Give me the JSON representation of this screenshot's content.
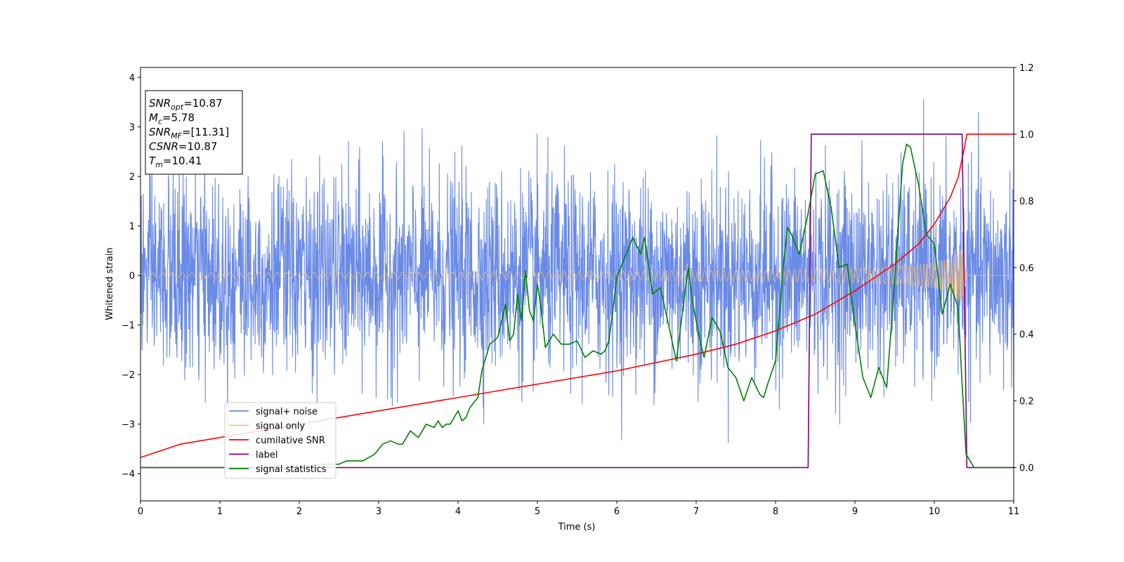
{
  "chart_data": {
    "type": "line",
    "title": "",
    "xlabel": "Time (s)",
    "ylabel": "Whitened strain",
    "y2label": "",
    "xlim": [
      0,
      11
    ],
    "ylim": [
      -4.55,
      4.2
    ],
    "y2lim": [
      -0.1,
      1.2
    ],
    "xticks": [
      0,
      1,
      2,
      3,
      4,
      5,
      6,
      7,
      8,
      9,
      10,
      11
    ],
    "yticks": [
      4,
      3,
      2,
      1,
      0,
      -1,
      -2,
      -3,
      -4
    ],
    "ytick_labels": [
      "4",
      "3",
      "2",
      "1",
      "0",
      "−1",
      "−2",
      "−3",
      "−4"
    ],
    "y2ticks": [
      1.2,
      1.0,
      0.8,
      0.6,
      0.4,
      0.2,
      0.0
    ],
    "y2tick_labels": [
      "1.2",
      "1.0",
      "0.8",
      "0.6",
      "0.4",
      "0.2",
      "0.0"
    ],
    "grid": false,
    "legend_position": "lower-left",
    "stats_box": [
      {
        "base": "SNR",
        "sub": "opt",
        "value": "=10.87"
      },
      {
        "base": "M",
        "sub": "c",
        "value": "=5.78"
      },
      {
        "base": "SNR",
        "sub": "MF",
        "value": "=[11.31]"
      },
      {
        "base": "CSNR",
        "sub": "",
        "value": "=10.87"
      },
      {
        "base": "T",
        "sub": "m",
        "value": "=10.41"
      }
    ],
    "series": [
      {
        "name": "signal+ noise",
        "color": "#6a8ae6",
        "axis": "left",
        "kind": "noise",
        "std": 1.0,
        "dt": 0.004
      },
      {
        "name": "signal only",
        "color": "#f7c27a",
        "axis": "left",
        "kind": "chirp",
        "t_merge": 10.41,
        "amplitude_envelope": {
          "x": [
            0,
            2,
            4,
            6,
            8,
            9,
            9.5,
            10,
            10.2,
            10.35,
            10.41
          ],
          "y": [
            0.05,
            0.06,
            0.07,
            0.09,
            0.12,
            0.15,
            0.18,
            0.25,
            0.35,
            0.55,
            0.0
          ]
        }
      },
      {
        "name": "cumilative SNR",
        "color": "#ff0000",
        "axis": "right",
        "x": [
          0,
          0.5,
          1,
          2,
          3,
          4,
          5,
          6,
          7,
          7.5,
          8,
          8.5,
          9,
          9.5,
          9.8,
          10,
          10.2,
          10.3,
          10.38,
          10.41,
          11
        ],
        "y": [
          0.03,
          0.07,
          0.09,
          0.13,
          0.17,
          0.21,
          0.25,
          0.29,
          0.34,
          0.37,
          0.41,
          0.46,
          0.53,
          0.61,
          0.67,
          0.73,
          0.81,
          0.87,
          0.96,
          1.0,
          1.0
        ]
      },
      {
        "name": "label",
        "color": "#800080",
        "axis": "right",
        "x": [
          0,
          8.41,
          8.45,
          10.35,
          10.41,
          11
        ],
        "y": [
          0.0,
          0.0,
          1.0,
          1.0,
          0.0,
          0.0
        ]
      },
      {
        "name": "signal statistics",
        "color": "#008000",
        "axis": "right",
        "x": [
          0,
          0.5,
          1,
          1.5,
          2,
          2.3,
          2.5,
          2.6,
          2.8,
          2.95,
          3.05,
          3.15,
          3.25,
          3.3,
          3.4,
          3.5,
          3.6,
          3.7,
          3.75,
          3.8,
          3.85,
          3.9,
          4.0,
          4.05,
          4.1,
          4.15,
          4.25,
          4.3,
          4.4,
          4.5,
          4.6,
          4.65,
          4.7,
          4.75,
          4.8,
          4.85,
          4.9,
          4.95,
          5.0,
          5.05,
          5.1,
          5.2,
          5.3,
          5.4,
          5.5,
          5.6,
          5.65,
          5.7,
          5.8,
          5.85,
          5.9,
          5.95,
          6.0,
          6.1,
          6.2,
          6.3,
          6.35,
          6.45,
          6.55,
          6.65,
          6.75,
          6.85,
          6.9,
          6.95,
          7.05,
          7.1,
          7.2,
          7.3,
          7.4,
          7.5,
          7.6,
          7.7,
          7.8,
          7.85,
          7.9,
          8.0,
          8.1,
          8.15,
          8.2,
          8.3,
          8.4,
          8.5,
          8.6,
          8.7,
          8.8,
          8.9,
          9.0,
          9.1,
          9.2,
          9.3,
          9.4,
          9.5,
          9.6,
          9.65,
          9.7,
          9.8,
          9.9,
          10.0,
          10.1,
          10.2,
          10.3,
          10.35,
          10.4,
          10.45,
          10.5,
          10.6,
          10.8,
          11
        ],
        "y": [
          0.0,
          0.0,
          0.0,
          0.0,
          0.0,
          0.01,
          0.01,
          0.02,
          0.02,
          0.04,
          0.07,
          0.08,
          0.07,
          0.07,
          0.11,
          0.09,
          0.13,
          0.12,
          0.14,
          0.12,
          0.13,
          0.13,
          0.17,
          0.14,
          0.15,
          0.18,
          0.21,
          0.29,
          0.37,
          0.39,
          0.49,
          0.38,
          0.4,
          0.52,
          0.44,
          0.59,
          0.47,
          0.44,
          0.55,
          0.47,
          0.36,
          0.4,
          0.37,
          0.37,
          0.38,
          0.33,
          0.34,
          0.35,
          0.34,
          0.35,
          0.38,
          0.47,
          0.57,
          0.63,
          0.69,
          0.64,
          0.69,
          0.52,
          0.54,
          0.43,
          0.32,
          0.51,
          0.6,
          0.5,
          0.38,
          0.33,
          0.45,
          0.41,
          0.3,
          0.27,
          0.2,
          0.27,
          0.22,
          0.21,
          0.25,
          0.32,
          0.61,
          0.72,
          0.7,
          0.64,
          0.75,
          0.88,
          0.89,
          0.78,
          0.6,
          0.61,
          0.43,
          0.27,
          0.21,
          0.3,
          0.24,
          0.56,
          0.91,
          0.97,
          0.96,
          0.85,
          0.7,
          0.67,
          0.46,
          0.55,
          0.48,
          0.25,
          0.04,
          0.02,
          0.0,
          0.0,
          0.0,
          0.0
        ]
      }
    ]
  }
}
